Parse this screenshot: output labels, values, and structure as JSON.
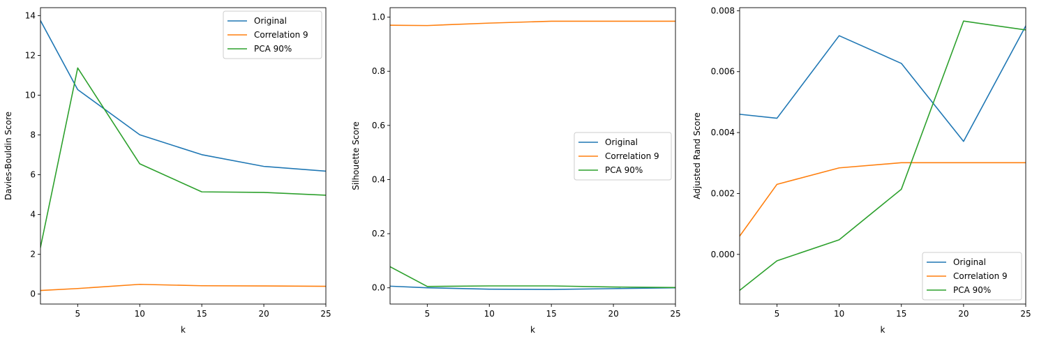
{
  "colors": {
    "Original": "#1f77b4",
    "Correlation 9": "#ff7f0e",
    "PCA 90%": "#2ca02c"
  },
  "chart_data": [
    {
      "type": "line",
      "xlabel": "k",
      "ylabel": "Davies-Bouldin Score",
      "x": [
        2,
        5,
        10,
        15,
        20,
        25
      ],
      "xlim": [
        2,
        25
      ],
      "ylim": [
        -0.5,
        14.4
      ],
      "xticks": [
        5,
        10,
        15,
        20,
        25
      ],
      "yticks": [
        0,
        2,
        4,
        6,
        8,
        10,
        12,
        14
      ],
      "ytick_labels": [
        "0",
        "2",
        "4",
        "6",
        "8",
        "10",
        "12",
        "14"
      ],
      "legend": "upper-right",
      "series": [
        {
          "name": "Original",
          "values": [
            13.75,
            10.28,
            8.01,
            7.01,
            6.42,
            6.18
          ]
        },
        {
          "name": "Correlation 9",
          "values": [
            0.18,
            0.28,
            0.49,
            0.42,
            0.41,
            0.39
          ]
        },
        {
          "name": "PCA 90%",
          "values": [
            2.35,
            11.37,
            6.55,
            5.14,
            5.11,
            4.97
          ]
        }
      ]
    },
    {
      "type": "line",
      "xlabel": "k",
      "ylabel": "Silhouette Score",
      "x": [
        2,
        5,
        10,
        15,
        20,
        25
      ],
      "xlim": [
        2,
        25
      ],
      "ylim": [
        -0.06,
        1.035
      ],
      "xticks": [
        5,
        10,
        15,
        20,
        25
      ],
      "yticks": [
        0.0,
        0.2,
        0.4,
        0.6,
        0.8,
        1.0
      ],
      "ytick_labels": [
        "0.0",
        "0.2",
        "0.4",
        "0.6",
        "0.8",
        "1.0"
      ],
      "legend": "center-right",
      "series": [
        {
          "name": "Original",
          "values": [
            0.006,
            0.0,
            -0.005,
            -0.006,
            -0.003,
            0.0
          ]
        },
        {
          "name": "Correlation 9",
          "values": [
            0.97,
            0.969,
            0.978,
            0.985,
            0.985,
            0.985
          ]
        },
        {
          "name": "PCA 90%",
          "values": [
            0.078,
            0.005,
            0.007,
            0.007,
            0.003,
            0.001
          ]
        }
      ]
    },
    {
      "type": "line",
      "xlabel": "k",
      "ylabel": "Adjusted Rand Score",
      "x": [
        2,
        5,
        10,
        15,
        20,
        25
      ],
      "xlim": [
        2,
        25
      ],
      "ylim": [
        -0.00163,
        0.0081
      ],
      "xticks": [
        5,
        10,
        15,
        20,
        25
      ],
      "yticks": [
        0.0,
        0.002,
        0.004,
        0.006,
        0.008
      ],
      "ytick_labels": [
        "0.000",
        "0.002",
        "0.004",
        "0.006",
        "0.008"
      ],
      "legend": "lower-right",
      "series": [
        {
          "name": "Original",
          "values": [
            0.0046,
            0.00447,
            0.00718,
            0.00627,
            0.00371,
            0.0075
          ]
        },
        {
          "name": "Correlation 9",
          "values": [
            0.0006,
            0.0023,
            0.00284,
            0.00301,
            0.00301,
            0.00301
          ]
        },
        {
          "name": "PCA 90%",
          "values": [
            -0.00118,
            -0.00021,
            0.00048,
            0.00214,
            0.00766,
            0.00737
          ]
        }
      ]
    }
  ]
}
